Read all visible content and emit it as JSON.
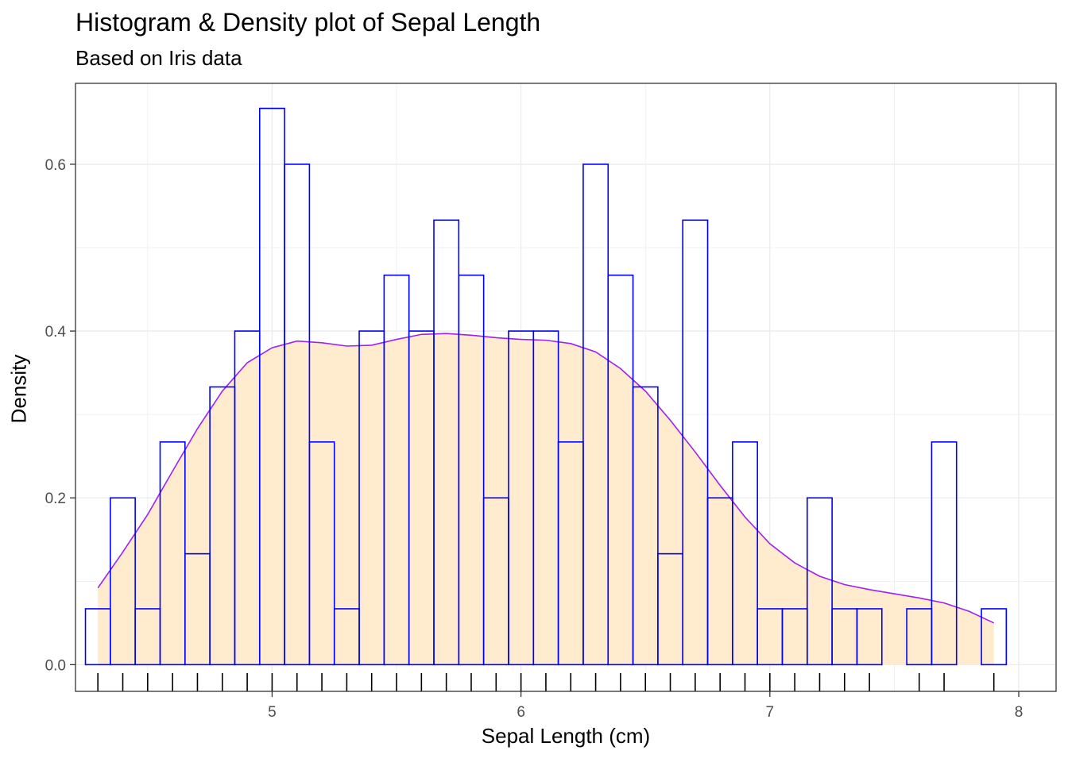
{
  "chart_data": {
    "type": "bar",
    "title": "Histogram & Density plot of Sepal Length",
    "subtitle": "Based on Iris data",
    "xlabel": "Sepal Length (cm)",
    "ylabel": "Density",
    "xlim": [
      4.21,
      8.15
    ],
    "ylim": [
      -0.032,
      0.697
    ],
    "x_ticks": [
      5,
      6,
      7,
      8
    ],
    "y_ticks": [
      0.0,
      0.2,
      0.4,
      0.6
    ],
    "y_tick_labels": [
      "0.0",
      "0.2",
      "0.4",
      "0.6"
    ],
    "grid": true,
    "histogram": {
      "bin_width": 0.1,
      "bin_start": 4.25,
      "values": [
        0.067,
        0.2,
        0.067,
        0.267,
        0.133,
        0.333,
        0.4,
        0.667,
        0.6,
        0.267,
        0.067,
        0.4,
        0.467,
        0.4,
        0.533,
        0.467,
        0.2,
        0.4,
        0.4,
        0.267,
        0.6,
        0.467,
        0.333,
        0.133,
        0.533,
        0.2,
        0.267,
        0.067,
        0.067,
        0.2,
        0.067,
        0.067,
        0,
        0.067,
        0.267,
        0,
        0.067
      ],
      "color": "#0000ff"
    },
    "density": {
      "x": [
        4.3,
        4.4,
        4.5,
        4.6,
        4.7,
        4.8,
        4.9,
        5.0,
        5.1,
        5.2,
        5.3,
        5.4,
        5.5,
        5.6,
        5.7,
        5.8,
        5.9,
        6.0,
        6.1,
        6.2,
        6.3,
        6.4,
        6.5,
        6.6,
        6.7,
        6.8,
        6.9,
        7.0,
        7.1,
        7.2,
        7.3,
        7.4,
        7.5,
        7.6,
        7.7,
        7.8,
        7.9
      ],
      "y": [
        0.092,
        0.135,
        0.18,
        0.232,
        0.283,
        0.328,
        0.362,
        0.38,
        0.388,
        0.386,
        0.382,
        0.383,
        0.39,
        0.396,
        0.397,
        0.395,
        0.392,
        0.39,
        0.389,
        0.385,
        0.375,
        0.355,
        0.328,
        0.293,
        0.255,
        0.215,
        0.177,
        0.145,
        0.122,
        0.106,
        0.096,
        0.09,
        0.085,
        0.08,
        0.074,
        0.064,
        0.05
      ],
      "line_color": "#a020f0",
      "fill_color": "#ffebcd"
    },
    "rug": [
      4.3,
      4.4,
      4.5,
      4.6,
      4.7,
      4.8,
      4.9,
      5.0,
      5.1,
      5.2,
      5.3,
      5.4,
      5.5,
      5.6,
      5.7,
      5.8,
      5.9,
      6.0,
      6.1,
      6.2,
      6.3,
      6.4,
      6.5,
      6.6,
      6.7,
      6.8,
      6.9,
      7.0,
      7.1,
      7.2,
      7.3,
      7.4,
      7.6,
      7.7,
      7.9
    ]
  }
}
